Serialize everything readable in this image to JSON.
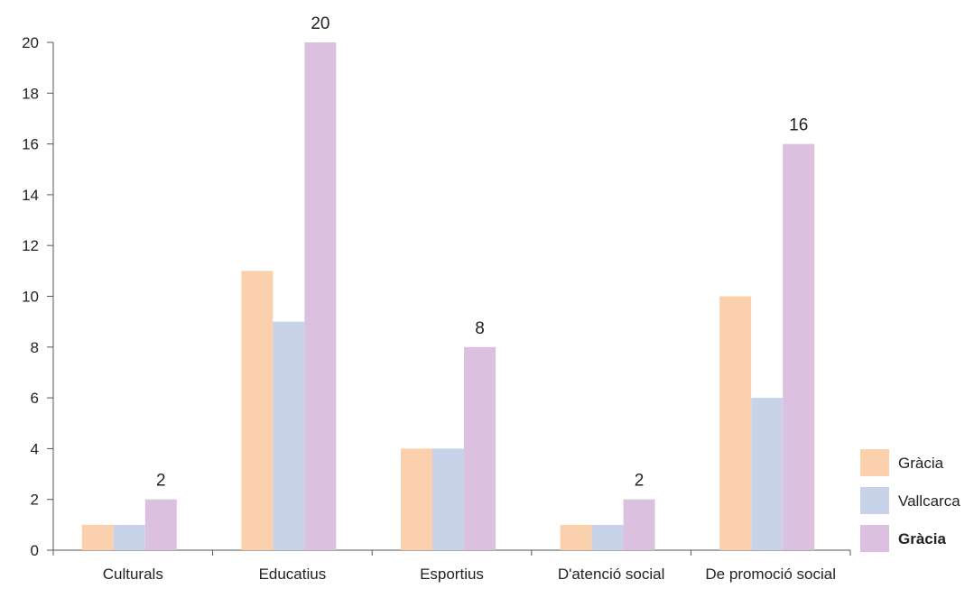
{
  "chart_data": {
    "type": "bar",
    "categories": [
      "Culturals",
      "Educatius",
      "Esportius",
      "D'atenció social",
      "De promoció social"
    ],
    "series": [
      {
        "name": "Gràcia",
        "values": [
          1,
          11,
          4,
          1,
          10
        ]
      },
      {
        "name": "Vallcarca",
        "values": [
          1,
          9,
          4,
          1,
          6
        ]
      },
      {
        "name": "Gràcia",
        "values": [
          2,
          20,
          8,
          2,
          16
        ]
      }
    ],
    "data_labels": [
      "2",
      "20",
      "8",
      "2",
      "16"
    ],
    "yticks": [
      "0",
      "2",
      "4",
      "6",
      "8",
      "10",
      "12",
      "14",
      "16",
      "18",
      "20"
    ],
    "ylim": [
      0,
      20
    ],
    "grid": false,
    "legend": "right",
    "legend_bold_index": 2,
    "colors": [
      "#fbd0ad",
      "#c8d3ea",
      "#dbc0df"
    ],
    "axis_color": "#555555"
  }
}
